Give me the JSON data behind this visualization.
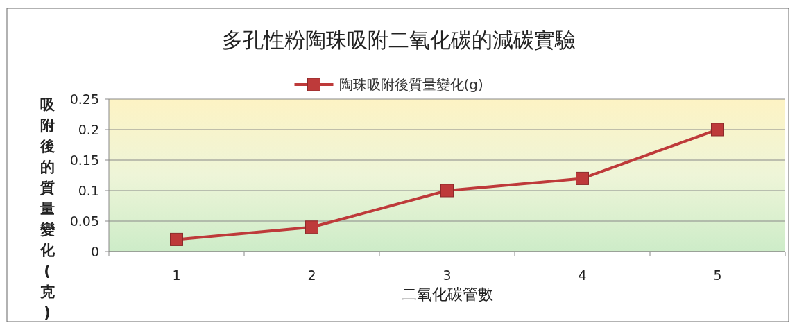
{
  "chart_data": {
    "type": "line",
    "title": "多孔性粉陶珠吸附二氧化碳的減碳實驗",
    "xlabel": "二氧化碳管數",
    "ylabel": "吸附後的質量變化(克)",
    "categories": [
      "1",
      "2",
      "3",
      "4",
      "5"
    ],
    "series": [
      {
        "name": "陶珠吸附後質量變化(g)",
        "color": "#be3a3a",
        "values": [
          0.02,
          0.04,
          0.1,
          0.12,
          0.2
        ]
      }
    ],
    "ylim": [
      0,
      0.25
    ],
    "yticks": [
      0,
      0.05,
      0.1,
      0.15,
      0.2,
      0.25
    ],
    "grid": "y",
    "legend": "top",
    "marker": "square",
    "line_style": "solid"
  }
}
